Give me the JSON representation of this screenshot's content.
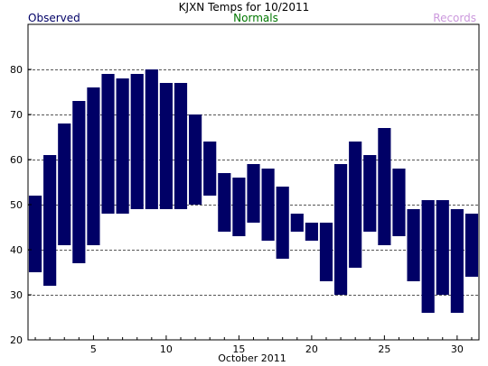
{
  "chart_data": {
    "type": "bar",
    "title": "KJXN Temps for 10/2011",
    "xlabel": "October 2011",
    "ylabel": "",
    "legend": [
      {
        "label": "Observed",
        "color": "#000066"
      },
      {
        "label": "Normals",
        "color": "#007700"
      },
      {
        "label": "Records",
        "color": "#cc99dd"
      }
    ],
    "xlim": [
      0.5,
      31.5
    ],
    "ylim": [
      20,
      90
    ],
    "x_ticks": [
      5,
      10,
      15,
      20,
      25,
      30
    ],
    "y_ticks": [
      20,
      30,
      40,
      50,
      60,
      70,
      80
    ],
    "grid": true,
    "bar_color": "#000066",
    "series": [
      {
        "name": "Observed",
        "days": [
          1,
          2,
          3,
          4,
          5,
          6,
          7,
          8,
          9,
          10,
          11,
          12,
          13,
          14,
          15,
          16,
          17,
          18,
          19,
          20,
          21,
          22,
          23,
          24,
          25,
          26,
          27,
          28,
          29,
          30,
          31
        ],
        "low": [
          35,
          32,
          41,
          37,
          41,
          48,
          48,
          49,
          49,
          49,
          49,
          50,
          52,
          44,
          43,
          46,
          42,
          38,
          44,
          42,
          33,
          30,
          36,
          44,
          41,
          43,
          33,
          26,
          30,
          26,
          34
        ],
        "high": [
          52,
          61,
          68,
          73,
          76,
          79,
          78,
          79,
          80,
          77,
          77,
          70,
          64,
          57,
          56,
          59,
          58,
          54,
          48,
          46,
          46,
          59,
          64,
          61,
          67,
          58,
          49,
          51,
          51,
          49,
          48
        ]
      }
    ]
  }
}
